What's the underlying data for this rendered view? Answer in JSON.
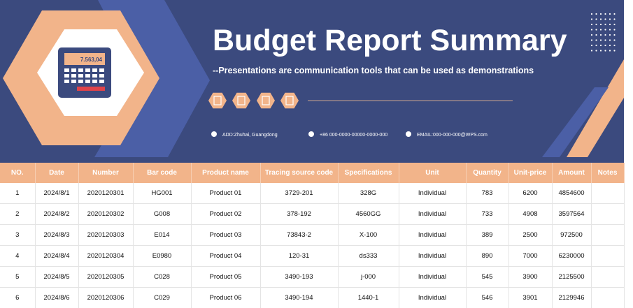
{
  "header": {
    "title": "Budget Report Summary",
    "subtitle": "--Presentations are communication tools that can be used as demonstrations",
    "calculator_display": "7.563,04",
    "contacts": [
      "ADD:Zhuhai, Guangdong",
      "+86 000-0000-00000-0000-000",
      "EMAIL:000-000-000@WPS.com"
    ]
  },
  "table": {
    "columns": [
      "NO.",
      "Date",
      "Number",
      "Bar code",
      "Product name",
      "Tracing source code",
      "Specifications",
      "Unit",
      "Quantity",
      "Unit-price",
      "Amount",
      "Notes"
    ],
    "rows": [
      [
        "1",
        "2024/8/1",
        "2020120301",
        "HG001",
        "Product 01",
        "3729-201",
        "328G",
        "Individual",
        "783",
        "6200",
        "4854600"
      ],
      [
        "2",
        "2024/8/2",
        "2020120302",
        "G008",
        "Product 02",
        "378-192",
        "4560GG",
        "Individual",
        "733",
        "4908",
        "3597564"
      ],
      [
        "3",
        "2024/8/3",
        "2020120303",
        "E014",
        "Product 03",
        "73843-2",
        "X-100",
        "Individual",
        "389",
        "2500",
        "972500"
      ],
      [
        "4",
        "2024/8/4",
        "2020120304",
        "E0980",
        "Product 04",
        "120-31",
        "ds333",
        "Individual",
        "890",
        "7000",
        "6230000"
      ],
      [
        "5",
        "2024/8/5",
        "2020120305",
        "C028",
        "Product 05",
        "3490-193",
        "j-000",
        "Individual",
        "545",
        "3900",
        "2125500"
      ],
      [
        "6",
        "2024/8/6",
        "2020120306",
        "C029",
        "Product 06",
        "3490-194",
        "1440-1",
        "Individual",
        "546",
        "3901",
        "2129946"
      ]
    ]
  }
}
